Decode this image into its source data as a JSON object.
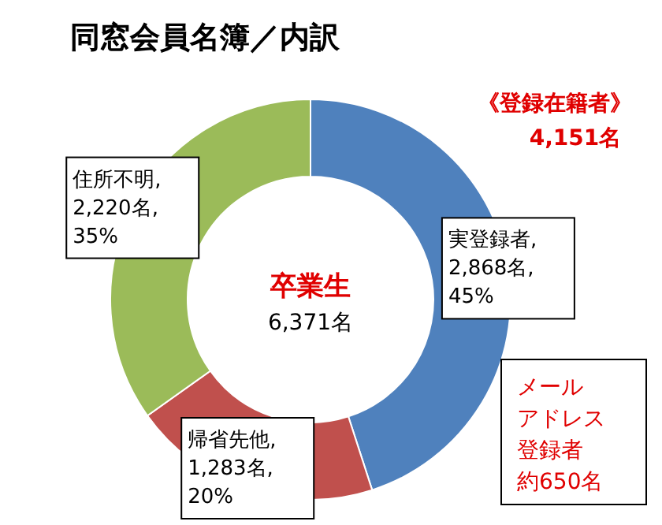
{
  "chart_data": {
    "type": "donut",
    "title": "同窓会員名簿／内訳",
    "categories": [
      null,
      null,
      null
    ],
    "values": [
      2868,
      1283,
      2220
    ],
    "value_labels": [
      "実登録者,\n2,868名,\n45%",
      "帰省先他,\n1,283名,\n20%",
      "住所不明,\n2,220名,\n35%"
    ],
    "colors": [
      "#4f81bd",
      "#c0504d",
      "#9bbb59"
    ],
    "annotations": [
      "卒業生",
      "6,371名",
      "《登録在籍者》",
      "4,151名",
      "メール",
      "アドレス",
      "登録者",
      "約650名"
    ]
  }
}
